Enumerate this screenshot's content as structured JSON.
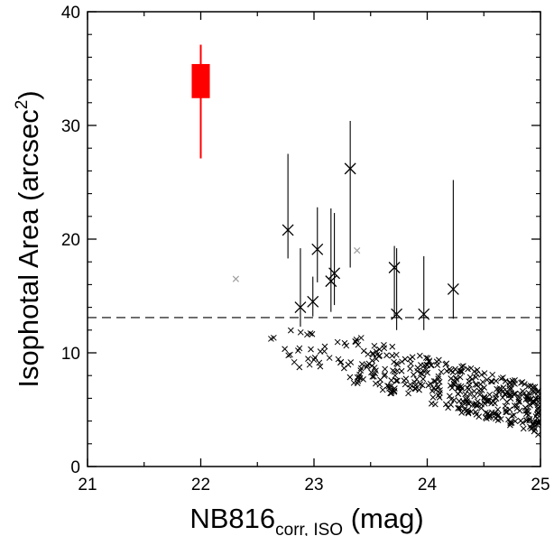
{
  "chart_data": {
    "type": "scatter",
    "title": "",
    "xlabel": {
      "main": "NB816",
      "subscript": "corr, ISO",
      "suffix": " (mag)"
    },
    "ylabel": {
      "main": "Isophotal Area (arcsec",
      "superscript": "2",
      "suffix": ")"
    },
    "xlim": [
      21,
      25
    ],
    "ylim": [
      0,
      40
    ],
    "x_ticks": [
      21,
      22,
      23,
      24,
      25
    ],
    "y_ticks": [
      0,
      10,
      20,
      30,
      40
    ],
    "x_tick_labels": [
      "21",
      "22",
      "23",
      "24",
      "25"
    ],
    "y_tick_labels": [
      "0",
      "10",
      "20",
      "30",
      "40"
    ],
    "grid": false,
    "threshold_line": {
      "y": 13.1,
      "style": "dashed",
      "color": "#000000"
    },
    "highlight": {
      "x": 22.0,
      "y": 33.9,
      "y_low": 32.4,
      "y_high": 35.4,
      "x_halfwidth": 0.08,
      "err_low": 27.1,
      "err_high": 37.1,
      "color": "#ff0000"
    },
    "selected": [
      {
        "x": 22.77,
        "y": 20.8,
        "err_low": 18.3,
        "err_high": 27.5
      },
      {
        "x": 22.88,
        "y": 14.0,
        "err_low": 12.3,
        "err_high": 19.2
      },
      {
        "x": 22.99,
        "y": 14.5,
        "err_low": 13.2,
        "err_high": 16.7
      },
      {
        "x": 23.03,
        "y": 19.1,
        "err_low": 16.2,
        "err_high": 22.8
      },
      {
        "x": 23.15,
        "y": 16.3,
        "err_low": 13.6,
        "err_high": 22.7
      },
      {
        "x": 23.18,
        "y": 17.0,
        "err_low": 14.2,
        "err_high": 22.3
      },
      {
        "x": 23.32,
        "y": 26.2,
        "err_low": 17.5,
        "err_high": 30.4
      },
      {
        "x": 23.71,
        "y": 17.5,
        "err_low": 13.2,
        "err_high": 19.4
      },
      {
        "x": 23.73,
        "y": 13.4,
        "err_low": 12.0,
        "err_high": 19.2
      },
      {
        "x": 23.97,
        "y": 13.4,
        "err_low": 12.0,
        "err_high": 18.5
      },
      {
        "x": 24.23,
        "y": 15.6,
        "err_low": 13.0,
        "err_high": 25.2
      }
    ],
    "grey_points": [
      {
        "x": 22.31,
        "y": 16.5
      },
      {
        "x": 23.38,
        "y": 19.0
      }
    ],
    "colors": {
      "axis": "#000000",
      "selected": "#000000",
      "grey": "#a0a0a0",
      "field": "#000000"
    }
  }
}
